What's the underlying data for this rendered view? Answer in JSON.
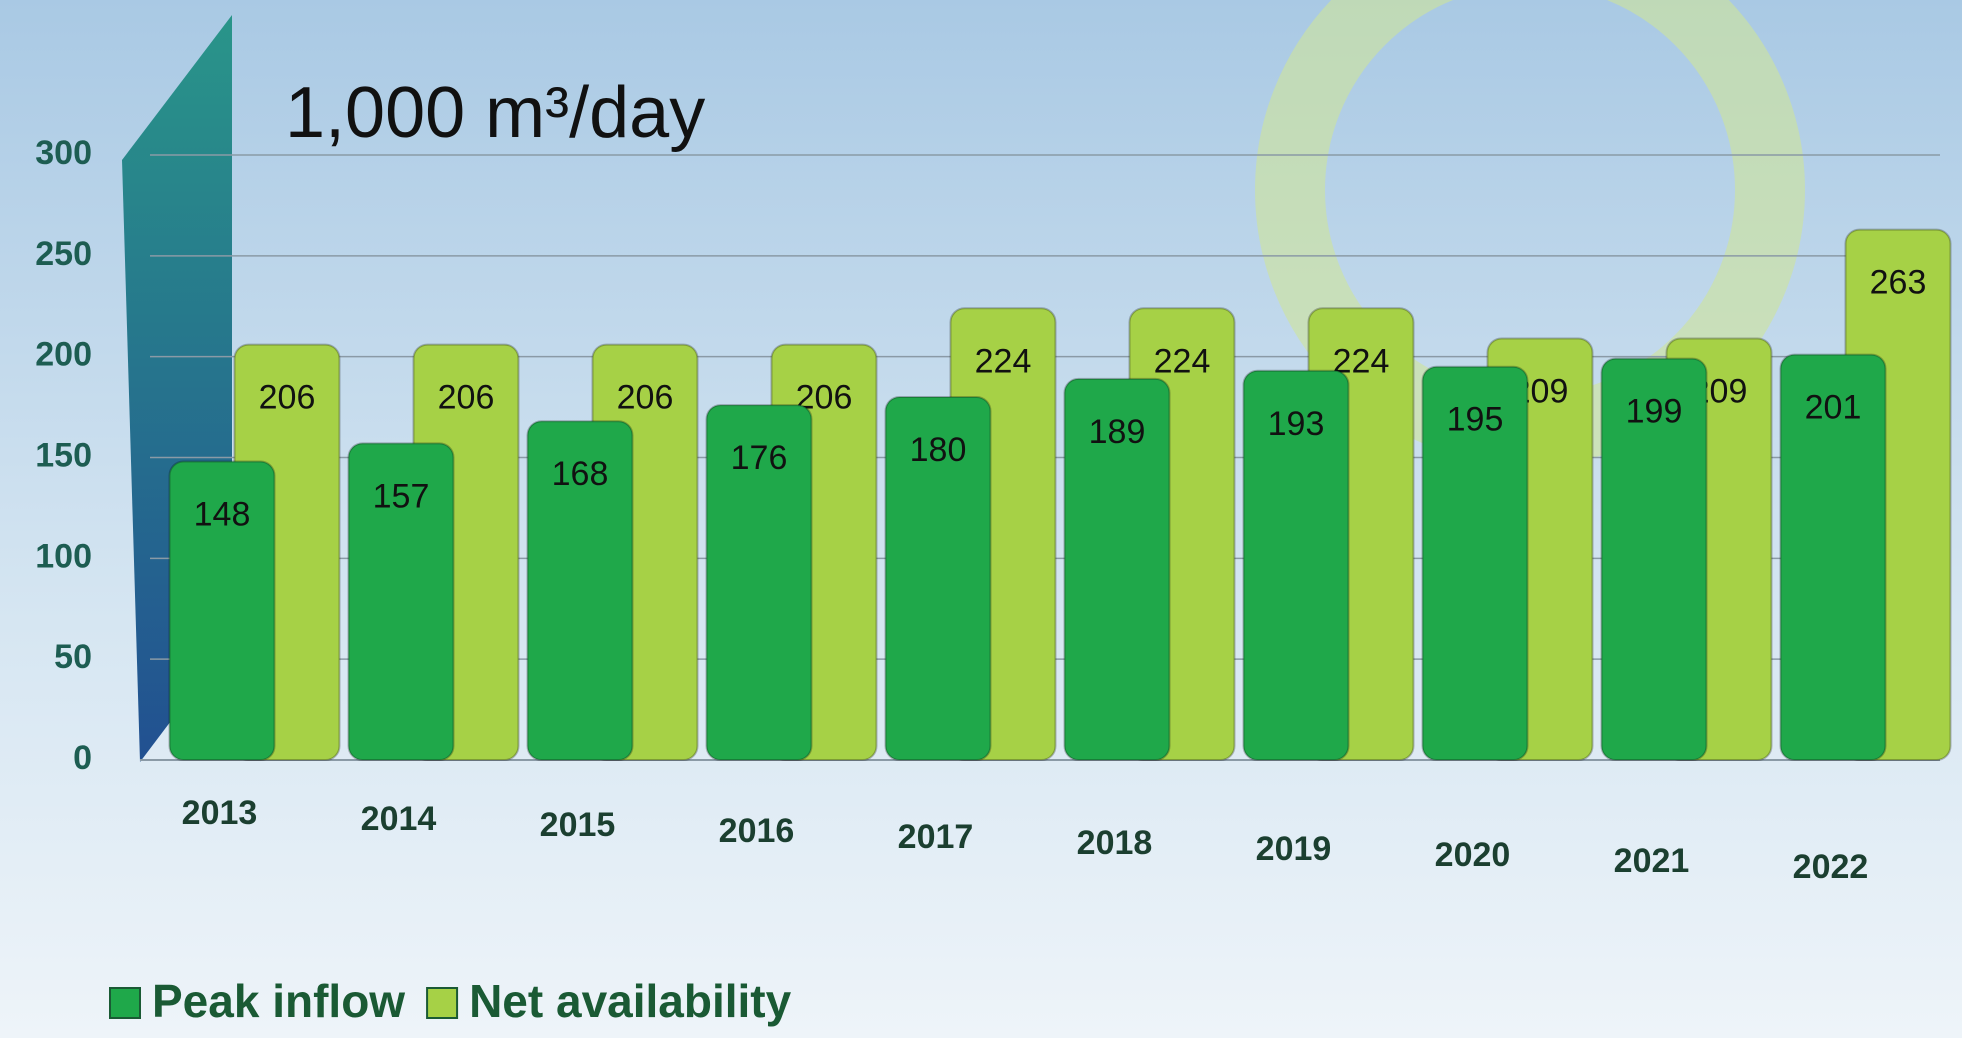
{
  "chart_data": {
    "type": "bar",
    "title": "1,000 m³/day",
    "categories": [
      "2013",
      "2014",
      "2015",
      "2016",
      "2017",
      "2018",
      "2019",
      "2020",
      "2021",
      "2022"
    ],
    "series": [
      {
        "name": "Peak inflow",
        "color": "#1fa84a",
        "values": [
          148,
          157,
          168,
          176,
          180,
          189,
          193,
          195,
          199,
          201
        ]
      },
      {
        "name": "Net availability",
        "color": "#a6d146",
        "values": [
          206,
          206,
          206,
          206,
          224,
          224,
          224,
          209,
          209,
          263
        ]
      }
    ],
    "ylim": [
      0,
      300
    ],
    "yticks": [
      0,
      50,
      100,
      150,
      200,
      250,
      300
    ],
    "grid": true,
    "legend": "bottom-left"
  }
}
